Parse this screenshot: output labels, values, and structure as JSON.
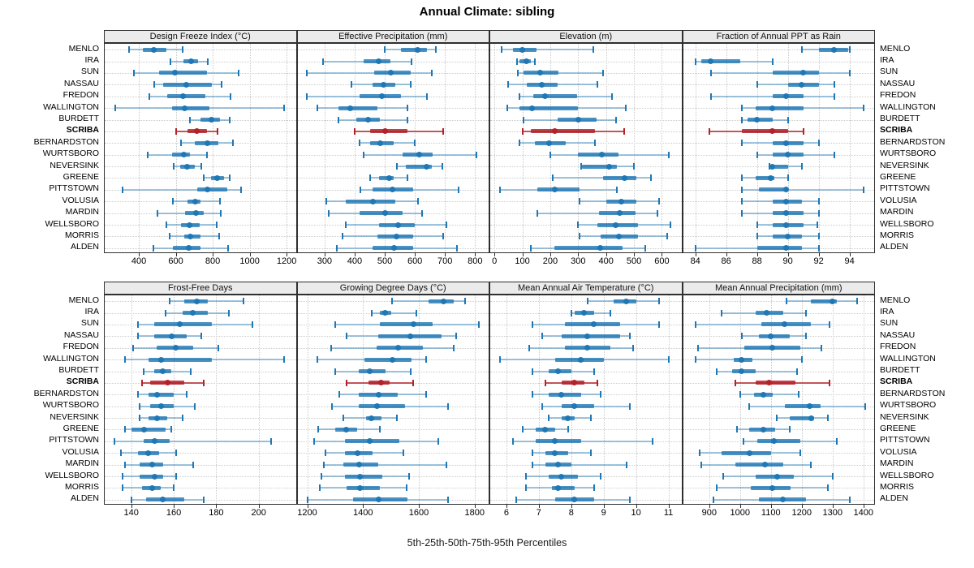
{
  "title": "Annual Climate: sibling",
  "footer": "5th-25th-50th-75th-95th Percentiles",
  "colors": {
    "blue": "#1f77b4",
    "blue_box": "rgba(31,119,180,0.80)",
    "blue_whisker": "rgba(31,119,180,0.42)",
    "red": "#b2222a",
    "red_box": "rgba(178,34,42,0.85)",
    "red_whisker": "rgba(178,34,42,0.75)",
    "header_bg": "#ebebeb",
    "border": "#2f2f2f",
    "grid": "#c9c9c9"
  },
  "chart_data": {
    "type": "dotplot-percentiles",
    "percentile_labels": [
      "5th",
      "25th",
      "50th",
      "75th",
      "95th"
    ],
    "highlight_site": "SCRIBA",
    "sites": [
      "MENLO",
      "IRA",
      "SUN",
      "NASSAU",
      "FREDON",
      "WALLINGTON",
      "BURDETT",
      "SCRIBA",
      "BERNARDSTON",
      "WURTSBORO",
      "NEVERSINK",
      "GREENE",
      "PITTSTOWN",
      "VOLUSIA",
      "MARDIN",
      "WELLSBORO",
      "MORRIS",
      "ALDEN"
    ],
    "panels": [
      {
        "title": "Design Freeze Index (°C)",
        "row": 0,
        "col": 0,
        "xlim": [
          215,
          1250
        ],
        "ticks": [
          400,
          600,
          800,
          1000,
          1200
        ],
        "values": [
          [
            345,
            420,
            480,
            550,
            635
          ],
          [
            570,
            640,
            685,
            720,
            775
          ],
          [
            375,
            510,
            595,
            770,
            940
          ],
          [
            485,
            530,
            655,
            795,
            850
          ],
          [
            455,
            555,
            640,
            760,
            895
          ],
          [
            270,
            580,
            650,
            780,
            1185
          ],
          [
            675,
            735,
            795,
            840,
            890
          ],
          [
            600,
            665,
            715,
            770,
            825
          ],
          [
            630,
            705,
            770,
            830,
            910
          ],
          [
            450,
            580,
            645,
            675,
            770
          ],
          [
            590,
            625,
            660,
            705,
            740
          ],
          [
            750,
            790,
            825,
            860,
            890
          ],
          [
            310,
            715,
            770,
            880,
            955
          ],
          [
            585,
            665,
            705,
            735,
            840
          ],
          [
            500,
            650,
            710,
            750,
            845
          ],
          [
            550,
            630,
            675,
            730,
            820
          ],
          [
            565,
            645,
            680,
            735,
            835
          ],
          [
            480,
            585,
            670,
            735,
            885
          ]
        ]
      },
      {
        "title": "Effective Precipitation (mm)",
        "row": 0,
        "col": 1,
        "xlim": [
          210,
          845
        ],
        "ticks": [
          300,
          400,
          500,
          600,
          700,
          800
        ],
        "values": [
          [
            500,
            555,
            610,
            640,
            670
          ],
          [
            295,
            430,
            480,
            520,
            590
          ],
          [
            240,
            465,
            520,
            585,
            655
          ],
          [
            390,
            460,
            495,
            535,
            585
          ],
          [
            240,
            415,
            490,
            555,
            640
          ],
          [
            275,
            345,
            385,
            475,
            575
          ],
          [
            345,
            405,
            445,
            485,
            575
          ],
          [
            400,
            450,
            500,
            575,
            695
          ],
          [
            415,
            450,
            485,
            530,
            600
          ],
          [
            430,
            560,
            615,
            660,
            805
          ],
          [
            540,
            570,
            640,
            655,
            690
          ],
          [
            450,
            480,
            515,
            530,
            575
          ],
          [
            420,
            460,
            525,
            595,
            745
          ],
          [
            305,
            370,
            460,
            535,
            610
          ],
          [
            315,
            415,
            500,
            560,
            625
          ],
          [
            370,
            480,
            545,
            600,
            705
          ],
          [
            360,
            475,
            540,
            595,
            695
          ],
          [
            340,
            460,
            530,
            595,
            740
          ]
        ]
      },
      {
        "title": "Elevation (m)",
        "row": 0,
        "col": 2,
        "xlim": [
          -15,
          670
        ],
        "ticks": [
          0,
          100,
          200,
          300,
          400,
          500,
          600
        ],
        "values": [
          [
            25,
            65,
            100,
            150,
            355
          ],
          [
            80,
            90,
            115,
            130,
            145
          ],
          [
            85,
            105,
            165,
            230,
            390
          ],
          [
            50,
            115,
            170,
            225,
            370
          ],
          [
            90,
            140,
            180,
            295,
            420
          ],
          [
            45,
            90,
            135,
            300,
            470
          ],
          [
            105,
            225,
            300,
            365,
            435
          ],
          [
            100,
            130,
            215,
            360,
            465
          ],
          [
            90,
            145,
            195,
            255,
            360
          ],
          [
            200,
            300,
            385,
            445,
            625
          ],
          [
            310,
            315,
            410,
            440,
            500
          ],
          [
            210,
            390,
            465,
            510,
            560
          ],
          [
            20,
            155,
            215,
            305,
            440
          ],
          [
            305,
            400,
            455,
            510,
            590
          ],
          [
            155,
            375,
            450,
            505,
            585
          ],
          [
            300,
            370,
            435,
            515,
            630
          ],
          [
            305,
            380,
            445,
            515,
            620
          ],
          [
            130,
            215,
            380,
            460,
            540
          ]
        ]
      },
      {
        "title": "Fraction of Annual PPT as Rain",
        "row": 0,
        "col": 3,
        "xlim": [
          83.2,
          95.6
        ],
        "ticks": [
          84,
          86,
          88,
          90,
          92,
          94
        ],
        "values": [
          [
            90.9,
            92.0,
            93.0,
            93.9,
            94.0
          ],
          [
            84.0,
            84.4,
            85.0,
            86.9,
            89.0
          ],
          [
            85.0,
            89.0,
            91.0,
            92.0,
            94.0
          ],
          [
            88.0,
            90.0,
            90.9,
            92.0,
            93.0
          ],
          [
            85.0,
            89.0,
            89.9,
            91.0,
            93.0
          ],
          [
            87.0,
            87.9,
            89.0,
            91.0,
            94.9
          ],
          [
            87.0,
            87.4,
            88.0,
            89.0,
            90.0
          ],
          [
            84.9,
            87.0,
            89.0,
            90.0,
            91.0
          ],
          [
            87.0,
            89.0,
            89.9,
            91.0,
            92.0
          ],
          [
            88.0,
            89.0,
            90.0,
            91.0,
            93.0
          ],
          [
            88.8,
            88.9,
            89.0,
            90.0,
            90.9
          ],
          [
            87.0,
            87.9,
            88.9,
            89.1,
            90.0
          ],
          [
            87.0,
            88.1,
            89.9,
            90.0,
            94.9
          ],
          [
            87.0,
            89.0,
            89.9,
            90.9,
            92.0
          ],
          [
            87.0,
            89.0,
            89.9,
            91.0,
            92.0
          ],
          [
            88.0,
            89.0,
            89.9,
            91.0,
            91.9
          ],
          [
            88.0,
            89.0,
            90.0,
            90.9,
            92.0
          ],
          [
            84.0,
            88.0,
            89.9,
            90.9,
            92.0
          ]
        ]
      },
      {
        "title": "Frost-Free Days",
        "row": 1,
        "col": 0,
        "xlim": [
          127.5,
          217.5
        ],
        "ticks": [
          140,
          160,
          180,
          200
        ],
        "values": [
          [
            158,
            165,
            171,
            176,
            193
          ],
          [
            156,
            164,
            169,
            176,
            186
          ],
          [
            143,
            151,
            163,
            178,
            197
          ],
          [
            143,
            151,
            159,
            166,
            173
          ],
          [
            141,
            152,
            161,
            169,
            181
          ],
          [
            137,
            148,
            154,
            178,
            212
          ],
          [
            146,
            151,
            155,
            159,
            168
          ],
          [
            145,
            149,
            157,
            165,
            174
          ],
          [
            143,
            148,
            152,
            160,
            166
          ],
          [
            144,
            149,
            154,
            160,
            170
          ],
          [
            144,
            148,
            152,
            157,
            164
          ],
          [
            137,
            140,
            146,
            156,
            159
          ],
          [
            132,
            146,
            151,
            158,
            206
          ],
          [
            135,
            143,
            148,
            153,
            161
          ],
          [
            137,
            144,
            150,
            155,
            169
          ],
          [
            136,
            144,
            151,
            155,
            161
          ],
          [
            136,
            145,
            150,
            154,
            160
          ],
          [
            140,
            147,
            155,
            165,
            174
          ]
        ]
      },
      {
        "title": "Growing Degree Days (°C)",
        "row": 1,
        "col": 1,
        "xlim": [
          1165,
          1850
        ],
        "ticks": [
          1200,
          1400,
          1600,
          1800
        ],
        "values": [
          [
            1505,
            1635,
            1690,
            1725,
            1765
          ],
          [
            1430,
            1460,
            1480,
            1500,
            1590
          ],
          [
            1300,
            1460,
            1580,
            1650,
            1815
          ],
          [
            1340,
            1455,
            1570,
            1680,
            1735
          ],
          [
            1285,
            1450,
            1525,
            1615,
            1725
          ],
          [
            1235,
            1405,
            1505,
            1575,
            1625
          ],
          [
            1300,
            1385,
            1425,
            1480,
            1570
          ],
          [
            1340,
            1420,
            1465,
            1495,
            1580
          ],
          [
            1315,
            1385,
            1455,
            1525,
            1625
          ],
          [
            1290,
            1385,
            1450,
            1550,
            1705
          ],
          [
            1330,
            1410,
            1430,
            1465,
            1520
          ],
          [
            1240,
            1300,
            1340,
            1380,
            1460
          ],
          [
            1225,
            1335,
            1425,
            1530,
            1670
          ],
          [
            1265,
            1335,
            1380,
            1435,
            1545
          ],
          [
            1260,
            1330,
            1385,
            1455,
            1700
          ],
          [
            1250,
            1335,
            1390,
            1470,
            1565
          ],
          [
            1245,
            1340,
            1390,
            1460,
            1555
          ],
          [
            1200,
            1365,
            1455,
            1560,
            1705
          ]
        ]
      },
      {
        "title": "Mean Annual Air Temperature (°C)",
        "row": 1,
        "col": 2,
        "xlim": [
          5.5,
          11.4
        ],
        "ticks": [
          6,
          7,
          8,
          9,
          10,
          11
        ],
        "values": [
          [
            8.5,
            9.3,
            9.7,
            10.0,
            10.7
          ],
          [
            8.0,
            8.1,
            8.4,
            8.7,
            9.2
          ],
          [
            6.8,
            7.8,
            8.7,
            9.5,
            10.7
          ],
          [
            7.1,
            7.7,
            8.5,
            9.5,
            9.8
          ],
          [
            6.7,
            7.8,
            8.5,
            9.2,
            9.9
          ],
          [
            5.8,
            7.5,
            8.3,
            9.0,
            11.0
          ],
          [
            6.8,
            7.3,
            7.6,
            8.0,
            8.7
          ],
          [
            7.2,
            7.7,
            8.1,
            8.4,
            8.8
          ],
          [
            6.8,
            7.3,
            7.7,
            8.3,
            8.9
          ],
          [
            7.1,
            7.7,
            8.1,
            8.7,
            9.8
          ],
          [
            7.3,
            7.7,
            7.9,
            8.1,
            8.6
          ],
          [
            6.5,
            6.9,
            7.2,
            7.5,
            7.9
          ],
          [
            6.2,
            6.9,
            7.5,
            8.3,
            10.5
          ],
          [
            6.8,
            7.2,
            7.5,
            7.9,
            8.6
          ],
          [
            6.8,
            7.2,
            7.6,
            8.0,
            9.7
          ],
          [
            6.6,
            7.3,
            7.7,
            8.2,
            8.9
          ],
          [
            6.6,
            7.4,
            7.6,
            8.1,
            8.7
          ],
          [
            6.3,
            7.5,
            8.1,
            8.7,
            9.8
          ]
        ]
      },
      {
        "title": "Mean Annual Precipitation (mm)",
        "row": 1,
        "col": 3,
        "xlim": [
          815,
          1435
        ],
        "ticks": [
          900,
          1000,
          1100,
          1200,
          1300,
          1400
        ],
        "values": [
          [
            1150,
            1230,
            1300,
            1315,
            1380
          ],
          [
            940,
            1050,
            1085,
            1140,
            1215
          ],
          [
            855,
            1070,
            1145,
            1230,
            1290
          ],
          [
            1005,
            1060,
            1100,
            1160,
            1215
          ],
          [
            865,
            1015,
            1105,
            1195,
            1265
          ],
          [
            855,
            980,
            1005,
            1040,
            1200
          ],
          [
            925,
            975,
            1005,
            1050,
            1185
          ],
          [
            985,
            1050,
            1095,
            1180,
            1290
          ],
          [
            1000,
            1045,
            1075,
            1105,
            1190
          ],
          [
            1030,
            1145,
            1225,
            1260,
            1405
          ],
          [
            1120,
            1160,
            1230,
            1240,
            1285
          ],
          [
            990,
            1030,
            1075,
            1115,
            1160
          ],
          [
            1010,
            1055,
            1110,
            1195,
            1315
          ],
          [
            870,
            940,
            1030,
            1100,
            1195
          ],
          [
            875,
            985,
            1080,
            1140,
            1230
          ],
          [
            945,
            1050,
            1120,
            1175,
            1300
          ],
          [
            925,
            1035,
            1105,
            1165,
            1285
          ],
          [
            915,
            1060,
            1140,
            1215,
            1355
          ]
        ]
      }
    ]
  }
}
